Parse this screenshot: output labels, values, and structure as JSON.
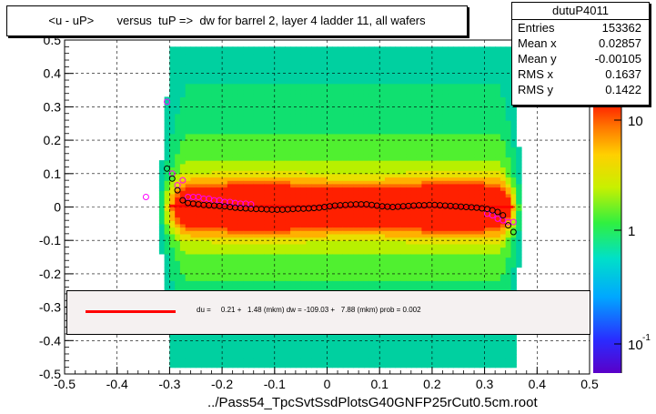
{
  "title": "<u - uP>       versus  tuP =>  dw for barrel 2, layer 4 ladder 11, all wafers",
  "stats": {
    "name": "dutuP4011",
    "rows": [
      {
        "key": "Entries",
        "value": "153362"
      },
      {
        "key": "Mean x",
        "value": "0.02857"
      },
      {
        "key": "Mean y",
        "value": "-0.00105"
      },
      {
        "key": "RMS x",
        "value": "0.1637"
      },
      {
        "key": "RMS y",
        "value": "0.1422"
      }
    ]
  },
  "fit_legend": {
    "text": "du =     0.21 +   1.48 (mkm) dw = -109.03 +   7.88 (mkm) prob = 0.002",
    "line_color": "#ff0000"
  },
  "x_title": "../Pass54_TpcSvtSsdPlotsG40GNFP25rCut0.5cm.root",
  "chart_data": {
    "type": "heatmap",
    "xlim": [
      -0.5,
      0.5
    ],
    "ylim": [
      -0.5,
      0.5
    ],
    "x_ticks": [
      -0.5,
      -0.4,
      -0.3,
      -0.2,
      -0.1,
      0,
      0.1,
      0.2,
      0.3,
      0.4,
      0.5
    ],
    "x_tick_labels": [
      "-0.5",
      "-0.4",
      "-0.3",
      "-0.2",
      "-0.1",
      "0",
      "0.1",
      "0.2",
      "0.3",
      "0.4",
      "0.5"
    ],
    "y_ticks": [
      -0.5,
      -0.4,
      -0.3,
      -0.2,
      -0.1,
      0,
      0.1,
      0.2,
      0.3,
      0.4,
      0.5
    ],
    "y_tick_labels": [
      "-0.5",
      "-0.4",
      "-0.3",
      "-0.2",
      "-0.1",
      "0",
      "0.1",
      "0.2",
      "0.3",
      "0.4",
      "0.5"
    ],
    "grid": true,
    "log_z": true,
    "z_tick_labels": [
      "10",
      "1",
      "10"
    ],
    "z_tick_exponent": "-1",
    "profile_black": {
      "x": [
        -0.305,
        -0.295,
        -0.285,
        -0.275,
        -0.265,
        -0.255,
        -0.245,
        -0.235,
        -0.225,
        -0.215,
        -0.205,
        -0.195,
        -0.185,
        -0.175,
        -0.165,
        -0.155,
        -0.145,
        -0.135,
        -0.125,
        -0.115,
        -0.105,
        -0.095,
        -0.085,
        -0.075,
        -0.065,
        -0.055,
        -0.045,
        -0.035,
        -0.025,
        -0.015,
        -0.005,
        0.005,
        0.015,
        0.025,
        0.035,
        0.045,
        0.055,
        0.065,
        0.075,
        0.085,
        0.095,
        0.105,
        0.115,
        0.125,
        0.135,
        0.145,
        0.155,
        0.165,
        0.175,
        0.185,
        0.195,
        0.205,
        0.215,
        0.225,
        0.235,
        0.245,
        0.255,
        0.265,
        0.275,
        0.285,
        0.295,
        0.305,
        0.315,
        0.325,
        0.335,
        0.345,
        0.355
      ],
      "y": [
        0.115,
        0.085,
        0.05,
        0.02,
        0.012,
        0.01,
        0.008,
        0.006,
        0.005,
        0.004,
        0.003,
        0.002,
        0.0,
        -0.002,
        -0.003,
        -0.004,
        -0.005,
        -0.006,
        -0.006,
        -0.007,
        -0.008,
        -0.008,
        -0.008,
        -0.007,
        -0.006,
        -0.005,
        -0.005,
        -0.004,
        -0.003,
        -0.002,
        0.0,
        0.002,
        0.004,
        0.005,
        0.006,
        0.007,
        0.008,
        0.008,
        0.008,
        0.006,
        0.004,
        0.002,
        0.001,
        0.0,
        0.001,
        0.002,
        0.003,
        0.004,
        0.005,
        0.005,
        0.006,
        0.006,
        0.005,
        0.004,
        0.003,
        0.002,
        0.001,
        0.0,
        -0.001,
        -0.002,
        -0.004,
        -0.006,
        -0.01,
        -0.015,
        -0.025,
        -0.055,
        -0.075
      ]
    },
    "profile_magenta": {
      "x": [
        -0.345,
        -0.305,
        -0.295,
        -0.285,
        -0.275,
        -0.265,
        -0.255,
        -0.245,
        -0.235,
        -0.225,
        -0.215,
        -0.205,
        -0.195,
        -0.185,
        -0.175,
        -0.165,
        -0.155,
        -0.145,
        0.305,
        0.315,
        0.325,
        0.335,
        0.345,
        0.355
      ],
      "y": [
        0.03,
        0.315,
        0.1,
        0.065,
        0.08,
        0.03,
        0.03,
        0.03,
        0.025,
        0.025,
        0.02,
        0.02,
        0.015,
        0.015,
        0.012,
        0.01,
        0.01,
        0.008,
        -0.02,
        -0.025,
        -0.035,
        -0.04,
        -0.045,
        -0.045
      ]
    },
    "fit_line": {
      "x": [
        -0.3,
        0.355
      ],
      "y": [
        0.003,
        0.0
      ]
    }
  }
}
